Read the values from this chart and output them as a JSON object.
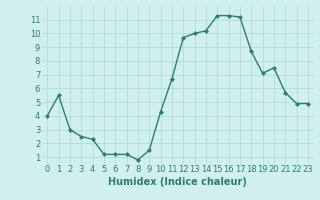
{
  "x": [
    0,
    1,
    2,
    3,
    4,
    5,
    6,
    7,
    8,
    9,
    10,
    11,
    12,
    13,
    14,
    15,
    16,
    17,
    18,
    19,
    20,
    21,
    22,
    23
  ],
  "y": [
    4.0,
    5.5,
    3.0,
    2.5,
    2.3,
    1.2,
    1.2,
    1.2,
    0.8,
    1.5,
    4.3,
    6.7,
    9.7,
    10.0,
    10.2,
    11.3,
    11.3,
    11.2,
    8.7,
    7.1,
    7.5,
    5.7,
    4.9,
    4.9
  ],
  "line_color": "#2e7d6e",
  "marker": "D",
  "markersize": 2.0,
  "linewidth": 1.0,
  "bg_color": "#cff0ee",
  "grid_color": "#aad8d5",
  "xlabel": "Humidex (Indice chaleur)",
  "xlabel_fontsize": 7,
  "tick_fontsize": 6,
  "xlim": [
    -0.5,
    23.5
  ],
  "ylim": [
    0.5,
    12
  ],
  "yticks": [
    1,
    2,
    3,
    4,
    5,
    6,
    7,
    8,
    9,
    10,
    11
  ],
  "xticks": [
    0,
    1,
    2,
    3,
    4,
    5,
    6,
    7,
    8,
    9,
    10,
    11,
    12,
    13,
    14,
    15,
    16,
    17,
    18,
    19,
    20,
    21,
    22,
    23
  ]
}
